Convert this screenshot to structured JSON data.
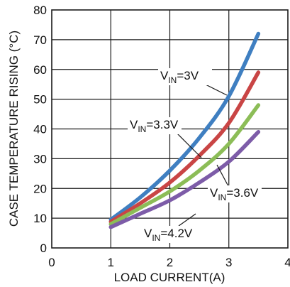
{
  "chart_data": {
    "type": "line",
    "title": "",
    "xlabel": "LOAD CURRENT(A)",
    "ylabel": "CASE TEMPERATURE RISING (°C)",
    "xlim": [
      0,
      4
    ],
    "ylim": [
      0,
      80
    ],
    "xticks": [
      "0",
      "1",
      "2",
      "3",
      "4"
    ],
    "yticks": [
      "0",
      "10",
      "20",
      "30",
      "40",
      "50",
      "60",
      "70",
      "80"
    ],
    "grid": true,
    "x": [
      1.0,
      1.5,
      2.0,
      2.5,
      3.0,
      3.5
    ],
    "series": [
      {
        "name_main": "V",
        "name_sub": "IN",
        "name_tail": "=3V",
        "color": "#3f7fc1",
        "values": [
          9.5,
          17,
          26,
          37,
          51,
          72
        ]
      },
      {
        "name_main": "V",
        "name_sub": "IN",
        "name_tail": "=3.3V",
        "color": "#c94545",
        "values": [
          8.8,
          15,
          22,
          31,
          42,
          59
        ]
      },
      {
        "name_main": "V",
        "name_sub": "IN",
        "name_tail": "=3.6V",
        "color": "#8cbd57",
        "values": [
          8,
          13.5,
          19,
          26,
          35,
          48
        ]
      },
      {
        "name_main": "V",
        "name_sub": "IN",
        "name_tail": "=4.2V",
        "color": "#7d5ca8",
        "values": [
          7,
          11.5,
          16,
          22,
          29,
          39
        ]
      }
    ]
  }
}
